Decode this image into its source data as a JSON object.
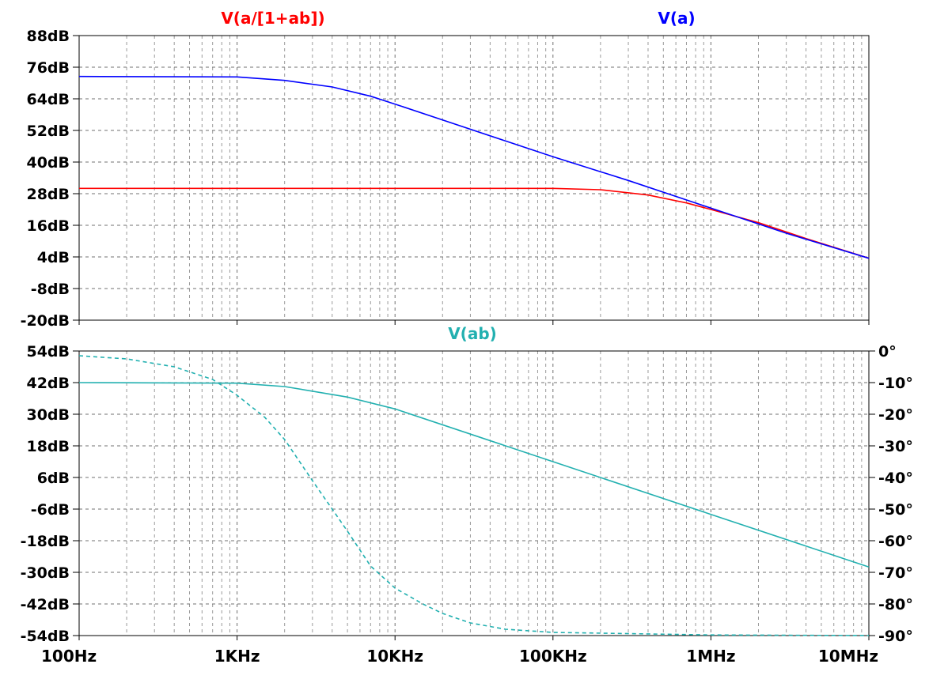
{
  "chart_data": [
    {
      "type": "line",
      "x_scale": "log",
      "xlim": [
        100,
        10000000
      ],
      "x_ticks": [
        100,
        1000,
        10000,
        100000,
        1000000,
        10000000
      ],
      "x_tick_labels": [
        "100Hz",
        "1KHz",
        "10KHz",
        "100KHz",
        "1MHz",
        "10MHz"
      ],
      "ylim": [
        -20,
        88
      ],
      "y_ticks": [
        88,
        76,
        64,
        52,
        40,
        28,
        16,
        4,
        -8,
        -20
      ],
      "y_tick_labels": [
        "88dB",
        "76dB",
        "64dB",
        "52dB",
        "40dB",
        "28dB",
        "16dB",
        "4dB",
        "-8dB",
        "-20dB"
      ],
      "grid": true,
      "series": [
        {
          "name": "V(a/[1+ab])",
          "color": "#ff0000",
          "x": [
            100,
            1000,
            10000,
            100000,
            200000,
            400000,
            700000,
            1000000,
            2000000,
            4000000,
            10000000
          ],
          "y": [
            30,
            30,
            30,
            30,
            29.5,
            27.5,
            24.5,
            22,
            17,
            11,
            3.5
          ]
        },
        {
          "name": "V(a)",
          "color": "#0000ff",
          "x": [
            100,
            1000,
            2000,
            4000,
            7000,
            10000,
            20000,
            50000,
            100000,
            300000,
            1000000,
            3000000,
            10000000
          ],
          "y": [
            72.5,
            72.3,
            71,
            68.5,
            65,
            62,
            56,
            48,
            42,
            33,
            22.5,
            13,
            3.5
          ]
        }
      ]
    },
    {
      "type": "line",
      "x_scale": "log",
      "xlim": [
        100,
        10000000
      ],
      "x_ticks": [
        100,
        1000,
        10000,
        100000,
        1000000,
        10000000
      ],
      "x_tick_labels": [
        "100Hz",
        "1KHz",
        "10KHz",
        "100KHz",
        "1MHz",
        "10MHz"
      ],
      "ylim": [
        -54,
        54
      ],
      "y_ticks": [
        54,
        42,
        30,
        18,
        6,
        -6,
        -18,
        -30,
        -42,
        -54
      ],
      "y_tick_labels": [
        "54dB",
        "42dB",
        "30dB",
        "18dB",
        "6dB",
        "-6dB",
        "-18dB",
        "-30dB",
        "-42dB",
        "-54dB"
      ],
      "y2lim": [
        -90,
        0
      ],
      "y2_ticks": [
        0,
        -10,
        -20,
        -30,
        -40,
        -50,
        -60,
        -70,
        -80,
        -90
      ],
      "y2_tick_labels": [
        "0°",
        "-10°",
        "-20°",
        "-30°",
        "-40°",
        "-50°",
        "-60°",
        "-70°",
        "-80°",
        "-90°"
      ],
      "grid": true,
      "series": [
        {
          "name": "V(ab)",
          "color": "#22b0b0",
          "x": [
            100,
            1000,
            2000,
            5000,
            10000,
            100000,
            1000000,
            10000000
          ],
          "y": [
            42,
            41.8,
            40.5,
            36.5,
            32,
            12,
            -8,
            -28
          ]
        },
        {
          "color": "#22b0b0",
          "dashed": true,
          "axis": "y2",
          "x": [
            100,
            200,
            400,
            700,
            1000,
            1500,
            2000,
            3000,
            4000,
            5000,
            7000,
            10000,
            15000,
            20000,
            30000,
            50000,
            100000,
            1000000,
            10000000
          ],
          "y": [
            -1.5,
            -2.5,
            -5,
            -9,
            -14,
            -21,
            -28,
            -41,
            -50,
            -57,
            -68,
            -75,
            -80,
            -83,
            -86,
            -88,
            -89,
            -89.8,
            -90
          ]
        }
      ]
    }
  ]
}
